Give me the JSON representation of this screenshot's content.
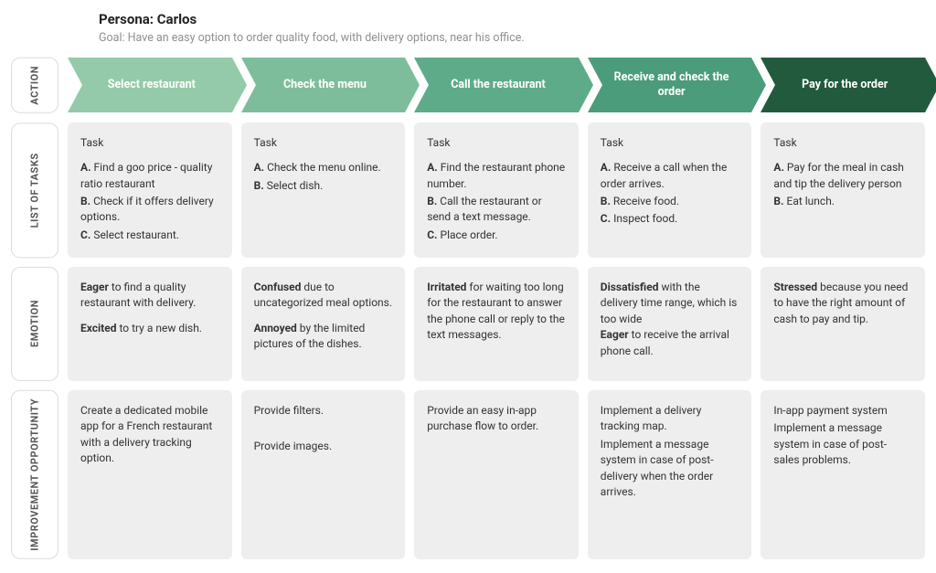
{
  "header": {
    "persona_label": "Persona: Carlos",
    "goal_label": "Goal: Have an easy option to order quality food, with delivery options, near his office."
  },
  "rowlabels": {
    "action": "ACTION",
    "tasks": "LIST OF TASKS",
    "emotion": "EMOTION",
    "opportunity": "IMPROVEMENT OPPORTUNITY"
  },
  "colors": {
    "row_border": "#dcdcdc",
    "card_bg": "#eeeeee",
    "arrows": [
      "#94caa9",
      "#7ebd9b",
      "#5eab8a",
      "#4a9c7b",
      "#225a3e"
    ]
  },
  "columns": [
    {
      "action": "Select restaurant",
      "task_heading": "Task",
      "tasks": [
        {
          "letter": "A.",
          "text": " Find a goo price - quality ratio  restaurant"
        },
        {
          "letter": "B.",
          "text": " Check if it offers delivery options."
        },
        {
          "letter": "C.",
          "text": " Select restaurant."
        }
      ],
      "emotions": [
        {
          "word": "Eager",
          "rest": " to find a quality restaurant with delivery."
        },
        {
          "word": "Excited",
          "rest": " to try a new dish."
        }
      ],
      "improvements": [
        "Create a dedicated mobile app for a French restaurant with a delivery tracking option."
      ]
    },
    {
      "action": "Check the menu",
      "task_heading": "Task",
      "tasks": [
        {
          "letter": "A.",
          "text": " Check the menu online."
        },
        {
          "letter": "B.",
          "text": " Select dish."
        }
      ],
      "emotions": [
        {
          "word": "Confused",
          "rest": " due to uncategorized meal options."
        },
        {
          "word": "Annoyed",
          "rest": " by the limited pictures of the dishes."
        }
      ],
      "improvements": [
        "Provide filters.",
        "",
        "Provide images."
      ]
    },
    {
      "action": "Call the restaurant",
      "task_heading": "Task",
      "tasks": [
        {
          "letter": "A.",
          "text": " Find the restaurant phone number."
        },
        {
          "letter": "B.",
          "text": " Call the restaurant or send a text message."
        },
        {
          "letter": "C.",
          "text": " Place order."
        }
      ],
      "emotions": [
        {
          "word": "Irritated",
          "rest": " for waiting too long for the restaurant to answer the phone call or reply to the text messages."
        }
      ],
      "improvements": [
        "Provide an easy in-app purchase flow to order."
      ]
    },
    {
      "action": "Receive and check the order",
      "task_heading": "Task",
      "tasks": [
        {
          "letter": "A.",
          "text": " Receive a call when the order arrives."
        },
        {
          "letter": "B.",
          "text": " Receive food."
        },
        {
          "letter": "C.",
          "text": " Inspect food."
        }
      ],
      "emotions": [
        {
          "word": "Dissatisfied",
          "rest": " with the delivery time range, which is too wide"
        },
        {
          "word": "Eager",
          "rest": " to receive the arrival phone call."
        }
      ],
      "improvements": [
        "Implement a delivery tracking map.",
        "Implement a message system in case of post-delivery when the order arrives."
      ]
    },
    {
      "action": "Pay for the order",
      "task_heading": "Task",
      "tasks": [
        {
          "letter": "A.",
          "text": " Pay for the meal in cash and tip the delivery person"
        },
        {
          "letter": "B.",
          "text": " Eat lunch."
        }
      ],
      "emotions": [
        {
          "word": "Stressed",
          "rest": " because you need to have the right amount of cash to pay and tip."
        }
      ],
      "improvements": [
        "In-app payment system",
        "Implement a message system in case of post-sales problems."
      ]
    }
  ]
}
